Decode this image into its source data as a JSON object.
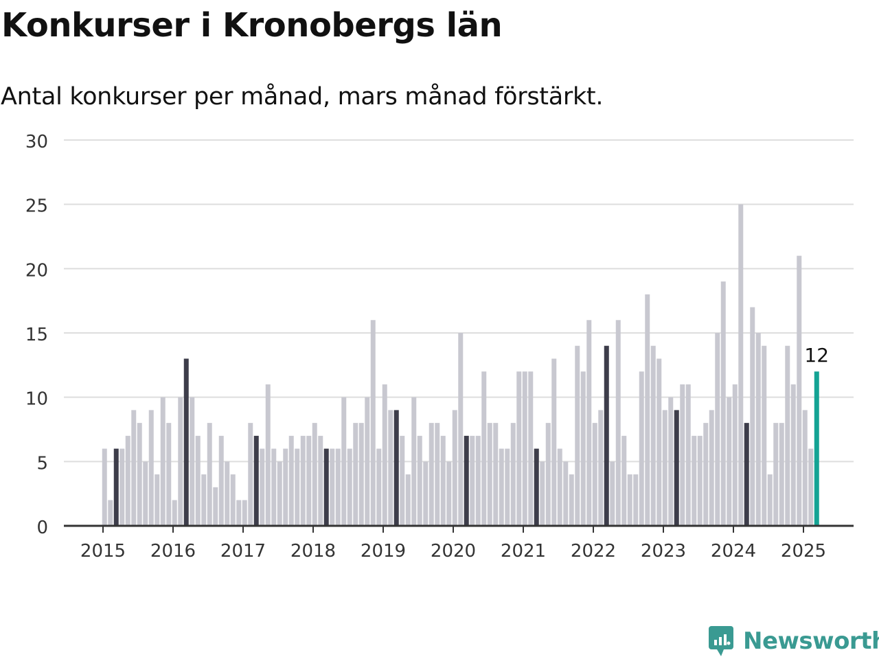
{
  "title": "Konkurser i Kronobergs län",
  "subtitle": "Antal konkurser per månad, mars månad förstärkt.",
  "brand": {
    "name": "Newsworthy",
    "color": "#3a9a92",
    "icon": "newsworthy-logo-icon"
  },
  "chart_data": {
    "type": "bar",
    "title": "Konkurser i Kronobergs län",
    "subtitle": "Antal konkurser per månad, mars månad förstärkt.",
    "xlabel": "",
    "ylabel": "",
    "ylim": [
      0,
      30
    ],
    "yticks": [
      "0",
      "5",
      "10",
      "15",
      "20",
      "25",
      "30"
    ],
    "year_labels": [
      "2015",
      "2016",
      "2017",
      "2018",
      "2019",
      "2020",
      "2021",
      "2022",
      "2023",
      "2024",
      "2025"
    ],
    "start": "2015-01",
    "grid": true,
    "colors": {
      "default": "#c8c8d0",
      "march": "#3d3d4a",
      "latest": "#14a394",
      "grid": "#dedede",
      "axis": "#333333"
    },
    "annotation": {
      "month": "2025-03",
      "label": "12"
    },
    "values": [
      6,
      2,
      6,
      6,
      7,
      9,
      8,
      5,
      9,
      4,
      10,
      8,
      2,
      10,
      13,
      10,
      7,
      4,
      8,
      3,
      7,
      5,
      4,
      2,
      2,
      8,
      7,
      6,
      11,
      6,
      5,
      6,
      7,
      6,
      7,
      7,
      8,
      7,
      6,
      6,
      6,
      10,
      6,
      8,
      8,
      10,
      16,
      6,
      11,
      9,
      9,
      7,
      4,
      10,
      7,
      5,
      8,
      8,
      7,
      5,
      9,
      15,
      7,
      7,
      7,
      12,
      8,
      8,
      6,
      6,
      8,
      12,
      12,
      12,
      6,
      5,
      8,
      13,
      6,
      5,
      4,
      14,
      12,
      16,
      8,
      9,
      14,
      5,
      16,
      7,
      4,
      4,
      12,
      18,
      14,
      13,
      9,
      10,
      9,
      11,
      11,
      7,
      7,
      8,
      9,
      15,
      19,
      10,
      11,
      25,
      8,
      17,
      15,
      14,
      4,
      8,
      8,
      14,
      11,
      21,
      9,
      6,
      12
    ]
  }
}
